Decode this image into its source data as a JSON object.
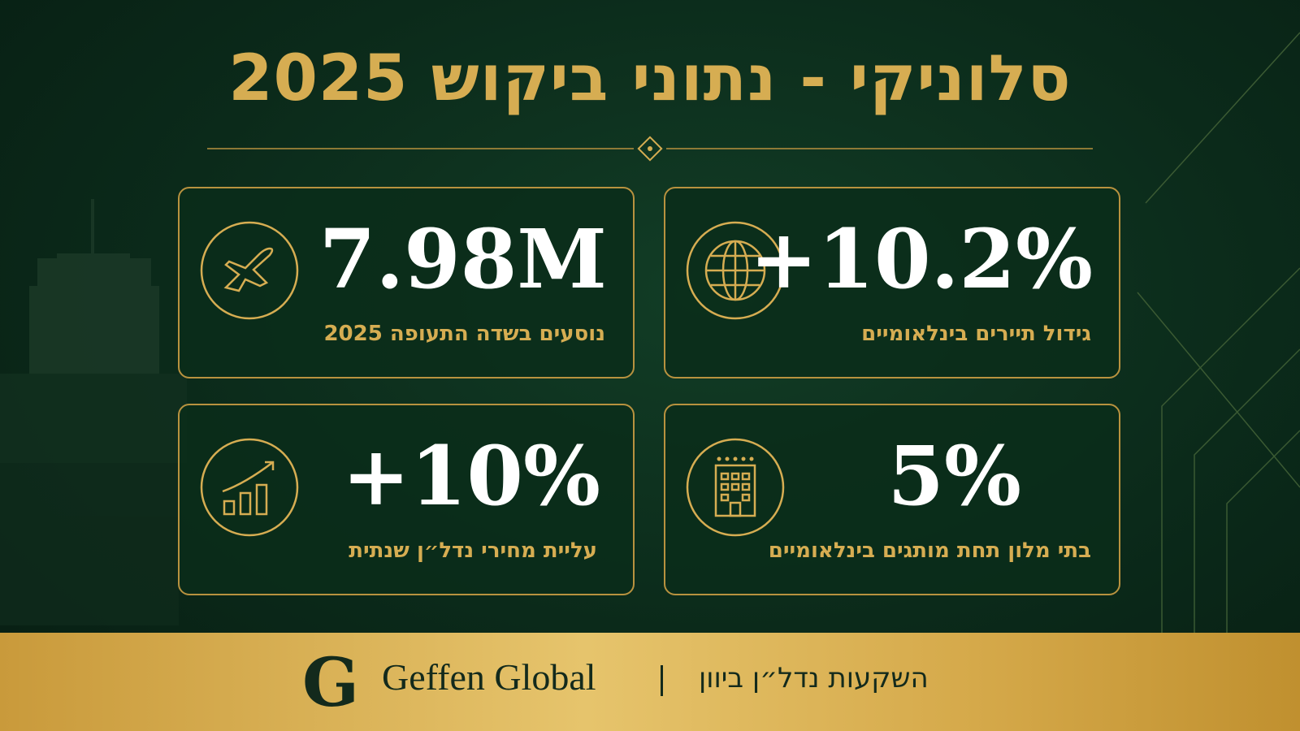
{
  "header": {
    "title": "סלוניקי - נתוני ביקוש 2025"
  },
  "cards": [
    {
      "value": "+10.2%",
      "label": "גידול תיירים בינלאומיים"
    },
    {
      "value": "7.98M",
      "label": "נוסעים בשדה התעופה 2025"
    },
    {
      "value": "5%",
      "label": "בתי מלון תחת מותגים בינלאומיים"
    },
    {
      "value": "+10%",
      "label": "עליית מחירי נדל״ן שנתית"
    }
  ],
  "footer": {
    "logo_letter": "G",
    "brand": "Geffen Global",
    "tagline": "השקעות נדל״ן ביוון"
  }
}
